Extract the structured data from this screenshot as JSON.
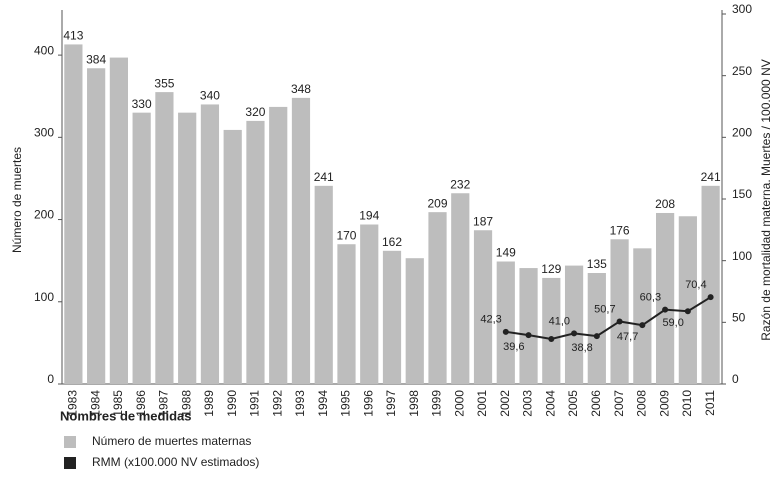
{
  "chart_data": {
    "type": "bar",
    "y_axis_label": "Número de muertes",
    "y2_axis_label": "Razón de mortalidad materna. Muertes / 100.000 NV",
    "legend_title": "Nombres de medidas",
    "categories": [
      "1983",
      "1984",
      "1985",
      "1986",
      "1987",
      "1988",
      "1989",
      "1990",
      "1991",
      "1992",
      "1993",
      "1994",
      "1995",
      "1996",
      "1997",
      "1998",
      "1999",
      "2000",
      "2001",
      "2002",
      "2003",
      "2004",
      "2005",
      "2006",
      "2007",
      "2008",
      "2009",
      "2010",
      "2011"
    ],
    "series": [
      {
        "name": "Número de muertes maternas",
        "color": "#bdbdbd",
        "type": "bar",
        "values": [
          413,
          384,
          397,
          330,
          355,
          330,
          340,
          309,
          320,
          337,
          348,
          241,
          170,
          194,
          162,
          153,
          209,
          232,
          187,
          149,
          141,
          129,
          144,
          135,
          176,
          165,
          208,
          204,
          241
        ],
        "value_labels": [
          "413",
          "384",
          null,
          "330",
          "355",
          null,
          "340",
          null,
          "320",
          null,
          "348",
          "241",
          "170",
          "194",
          "162",
          null,
          "209",
          "232",
          "187",
          "149",
          null,
          "129",
          null,
          "135",
          "176",
          null,
          "208",
          null,
          "241"
        ]
      },
      {
        "name": "RMM (x100.000 NV estimados)",
        "color": "#222222",
        "type": "line",
        "axis": "y2",
        "values": [
          null,
          null,
          null,
          null,
          null,
          null,
          null,
          null,
          null,
          null,
          null,
          null,
          null,
          null,
          null,
          null,
          null,
          null,
          null,
          42.3,
          39.6,
          36.5,
          41.0,
          38.8,
          50.7,
          47.7,
          60.3,
          59.0,
          70.4
        ],
        "value_labels": [
          null,
          null,
          null,
          null,
          null,
          null,
          null,
          null,
          null,
          null,
          null,
          null,
          null,
          null,
          null,
          null,
          null,
          null,
          null,
          "42,3",
          "39,6",
          null,
          "41,0",
          "38,8",
          "50,7",
          "47,7",
          "60,3",
          "59,0",
          "70,4"
        ]
      }
    ],
    "ylim": [
      0,
      450
    ],
    "yticks": [
      0,
      100,
      200,
      300,
      400
    ],
    "y2lim": [
      0,
      300
    ],
    "y2ticks": [
      0,
      50,
      100,
      150,
      200,
      250,
      300
    ]
  }
}
